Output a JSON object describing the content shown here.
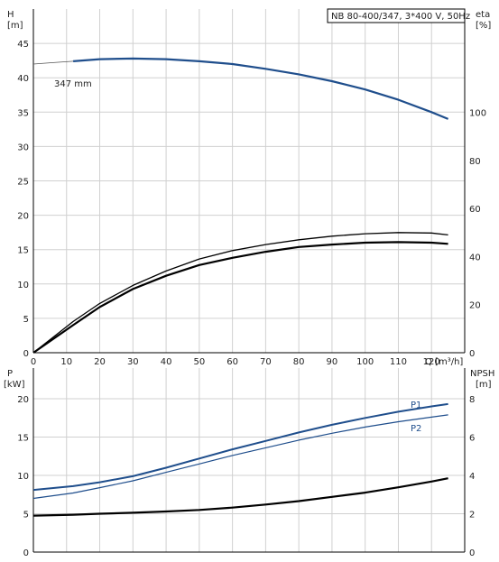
{
  "chart_data": [
    {
      "type": "line",
      "title": "NB 80-400/347, 3*400 V, 50Hz",
      "xlabel": "Q [m³/h]",
      "xlim": [
        0,
        130
      ],
      "xticks": [
        0,
        10,
        20,
        30,
        40,
        50,
        60,
        70,
        80,
        90,
        100,
        110,
        120
      ],
      "y_left": {
        "label_line1": "H",
        "label_line2": "[m]",
        "lim": [
          0,
          50
        ],
        "ticks": [
          0,
          5,
          10,
          15,
          20,
          25,
          30,
          35,
          40,
          45
        ]
      },
      "y_right": {
        "label_line1": "eta",
        "label_line2": "[%]",
        "lim": [
          0,
          143
        ],
        "ticks": [
          0,
          20,
          40,
          60,
          80,
          100
        ]
      },
      "grid": true,
      "annotations": [
        "347 mm"
      ],
      "series": [
        {
          "role": "head",
          "axis": "left",
          "color": "#1f4e8c",
          "x": [
            12,
            20,
            30,
            40,
            50,
            60,
            70,
            80,
            90,
            100,
            110,
            120,
            125
          ],
          "y": [
            42.4,
            42.7,
            42.8,
            42.7,
            42.4,
            42.0,
            41.3,
            40.5,
            39.5,
            38.3,
            36.8,
            35.0,
            34.0
          ]
        },
        {
          "role": "head-extension",
          "axis": "left",
          "color": "#555555",
          "x": [
            0,
            6,
            12
          ],
          "y": [
            42.0,
            42.2,
            42.4
          ]
        },
        {
          "role": "efficiency-upper",
          "axis": "right",
          "color": "#000000",
          "x": [
            0,
            12,
            20,
            30,
            40,
            50,
            60,
            70,
            80,
            90,
            100,
            110,
            120,
            125
          ],
          "y": [
            0,
            13.0,
            20.5,
            28.0,
            34.0,
            39.0,
            42.5,
            45.0,
            47.0,
            48.5,
            49.5,
            50.0,
            49.8,
            49.0
          ]
        },
        {
          "role": "efficiency-lower",
          "axis": "right",
          "color": "#000000",
          "x": [
            0,
            12,
            20,
            30,
            40,
            50,
            60,
            70,
            80,
            90,
            100,
            110,
            120,
            125
          ],
          "y": [
            0,
            11.5,
            19.0,
            26.5,
            32.0,
            36.5,
            39.5,
            42.0,
            44.0,
            45.0,
            45.8,
            46.0,
            45.8,
            45.3
          ]
        }
      ]
    },
    {
      "type": "line",
      "xlim": [
        0,
        130
      ],
      "y_left": {
        "label_line1": "P",
        "label_line2": "[kW]",
        "lim": [
          0,
          24
        ],
        "ticks": [
          0,
          5,
          10,
          15,
          20
        ]
      },
      "y_right": {
        "label_line1": "NPSH",
        "label_line2": "[m]",
        "lim": [
          0,
          9.6
        ],
        "ticks": [
          0,
          2,
          4,
          6,
          8
        ]
      },
      "grid": true,
      "series": [
        {
          "name": "P1",
          "axis": "left",
          "color": "#1f4e8c",
          "x": [
            0,
            12,
            20,
            30,
            40,
            50,
            60,
            70,
            80,
            90,
            100,
            110,
            120,
            125
          ],
          "y": [
            8.1,
            8.6,
            9.1,
            9.9,
            11.0,
            12.2,
            13.4,
            14.5,
            15.6,
            16.6,
            17.5,
            18.3,
            19.0,
            19.3
          ]
        },
        {
          "name": "P2",
          "axis": "left",
          "color": "#1f4e8c",
          "x": [
            0,
            12,
            20,
            30,
            40,
            50,
            60,
            70,
            80,
            90,
            100,
            110,
            120,
            125
          ],
          "y": [
            7.0,
            7.7,
            8.4,
            9.3,
            10.4,
            11.5,
            12.6,
            13.6,
            14.6,
            15.5,
            16.3,
            17.0,
            17.6,
            17.9
          ]
        },
        {
          "role": "npsh",
          "axis": "right",
          "color": "#000000",
          "x": [
            0,
            12,
            20,
            30,
            40,
            50,
            60,
            70,
            80,
            90,
            100,
            110,
            120,
            125
          ],
          "y": [
            1.9,
            1.95,
            2.0,
            2.05,
            2.12,
            2.2,
            2.32,
            2.48,
            2.66,
            2.88,
            3.1,
            3.38,
            3.68,
            3.85
          ]
        }
      ]
    }
  ]
}
